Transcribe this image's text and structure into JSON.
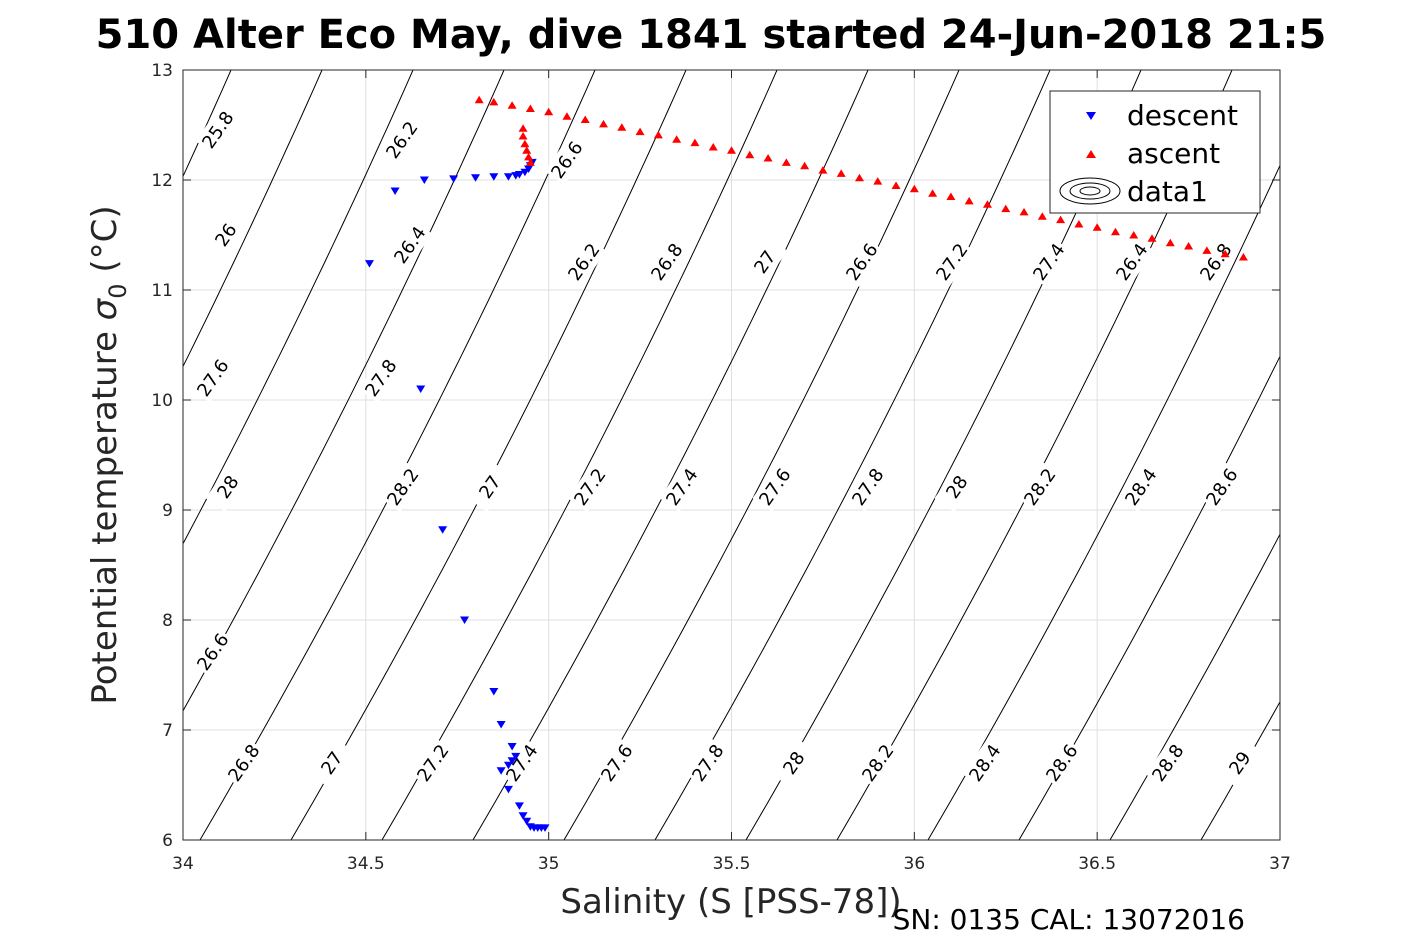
{
  "chart_data": {
    "type": "scatter",
    "title": "510 Alter Eco May, dive 1841 started 24-Jun-2018 21:5",
    "xlabel": "Salinity (S [PSS-78])",
    "ylabel_main": "Potential temperature ",
    "ylabel_sigma": "σ",
    "ylabel_sub": "0",
    "ylabel_unit": " (°C)",
    "xlim": [
      34,
      37
    ],
    "ylim": [
      6,
      13
    ],
    "x_ticks": [
      "34",
      "34.5",
      "35",
      "35.5",
      "36",
      "36.5",
      "37"
    ],
    "y_ticks": [
      "6",
      "7",
      "8",
      "9",
      "10",
      "11",
      "12",
      "13"
    ],
    "x_tick_values": [
      34,
      34.5,
      35,
      35.5,
      36,
      36.5,
      37
    ],
    "y_tick_values": [
      6,
      7,
      8,
      9,
      10,
      11,
      12,
      13
    ],
    "grid": true,
    "legend_position": "top-right",
    "legend": [
      "descent",
      "ascent",
      "data1"
    ],
    "colors": {
      "descent": "#0000ff",
      "ascent": "#ff0000",
      "contour": "#000000",
      "grid": "#dfdfdf",
      "axis": "#262626"
    },
    "series": [
      {
        "name": "descent",
        "marker": "triangle-down",
        "points": [
          [
            34.51,
            11.24
          ],
          [
            34.58,
            11.9
          ],
          [
            34.66,
            12.0
          ],
          [
            34.74,
            12.01
          ],
          [
            34.8,
            12.02
          ],
          [
            34.85,
            12.03
          ],
          [
            34.89,
            12.03
          ],
          [
            34.91,
            12.04
          ],
          [
            34.92,
            12.05
          ],
          [
            34.935,
            12.07
          ],
          [
            34.945,
            12.1
          ],
          [
            34.95,
            12.13
          ],
          [
            34.955,
            12.16
          ],
          [
            34.65,
            10.1
          ],
          [
            34.71,
            8.82
          ],
          [
            34.77,
            8.0
          ],
          [
            34.85,
            7.35
          ],
          [
            34.87,
            7.05
          ],
          [
            34.9,
            6.85
          ],
          [
            34.91,
            6.76
          ],
          [
            34.9,
            6.72
          ],
          [
            34.89,
            6.68
          ],
          [
            34.87,
            6.63
          ],
          [
            34.89,
            6.46
          ],
          [
            34.92,
            6.31
          ],
          [
            34.93,
            6.22
          ],
          [
            34.94,
            6.17
          ],
          [
            34.95,
            6.12
          ],
          [
            34.96,
            6.11
          ],
          [
            34.97,
            6.11
          ],
          [
            34.98,
            6.11
          ],
          [
            34.99,
            6.11
          ]
        ]
      },
      {
        "name": "ascent",
        "marker": "triangle-up",
        "points": [
          [
            34.81,
            12.73
          ],
          [
            34.85,
            12.71
          ],
          [
            34.9,
            12.68
          ],
          [
            34.95,
            12.65
          ],
          [
            35.0,
            12.62
          ],
          [
            35.05,
            12.58
          ],
          [
            35.1,
            12.55
          ],
          [
            35.15,
            12.51
          ],
          [
            35.2,
            12.48
          ],
          [
            35.25,
            12.44
          ],
          [
            35.3,
            12.41
          ],
          [
            35.35,
            12.37
          ],
          [
            35.4,
            12.34
          ],
          [
            35.45,
            12.3
          ],
          [
            35.5,
            12.27
          ],
          [
            35.55,
            12.23
          ],
          [
            35.6,
            12.2
          ],
          [
            35.65,
            12.16
          ],
          [
            35.7,
            12.13
          ],
          [
            35.75,
            12.09
          ],
          [
            35.8,
            12.06
          ],
          [
            35.85,
            12.02
          ],
          [
            35.9,
            11.99
          ],
          [
            35.95,
            11.95
          ],
          [
            36.0,
            11.92
          ],
          [
            36.05,
            11.88
          ],
          [
            36.1,
            11.85
          ],
          [
            36.15,
            11.81
          ],
          [
            36.2,
            11.78
          ],
          [
            36.25,
            11.74
          ],
          [
            36.3,
            11.71
          ],
          [
            36.35,
            11.67
          ],
          [
            36.4,
            11.64
          ],
          [
            36.45,
            11.6
          ],
          [
            36.5,
            11.57
          ],
          [
            36.55,
            11.53
          ],
          [
            36.6,
            11.5
          ],
          [
            36.65,
            11.47
          ],
          [
            36.7,
            11.43
          ],
          [
            36.75,
            11.4
          ],
          [
            36.8,
            11.36
          ],
          [
            36.85,
            11.33
          ],
          [
            36.9,
            11.3
          ],
          [
            34.95,
            12.16
          ],
          [
            34.945,
            12.21
          ],
          [
            34.94,
            12.27
          ],
          [
            34.935,
            12.33
          ],
          [
            34.93,
            12.4
          ],
          [
            34.93,
            12.47
          ]
        ]
      }
    ],
    "contour_labels": [
      "25.8",
      "26.2",
      "26",
      "26.4",
      "26.6",
      "26.2",
      "26.8",
      "27",
      "26.6",
      "27.2",
      "27.4",
      "26.4",
      "26.8",
      "27.6",
      "27.8",
      "28",
      "28.2",
      "27",
      "27.2",
      "27.4",
      "27.6",
      "27.8",
      "28",
      "28.2",
      "28.4",
      "28.6",
      "26.6",
      "26.8",
      "27",
      "27.2",
      "27.4",
      "27.6",
      "27.8",
      "28",
      "28.2",
      "28.4",
      "28.6",
      "28.8",
      "29"
    ]
  },
  "footer_text": "SN: 0135  CAL: 13072016"
}
